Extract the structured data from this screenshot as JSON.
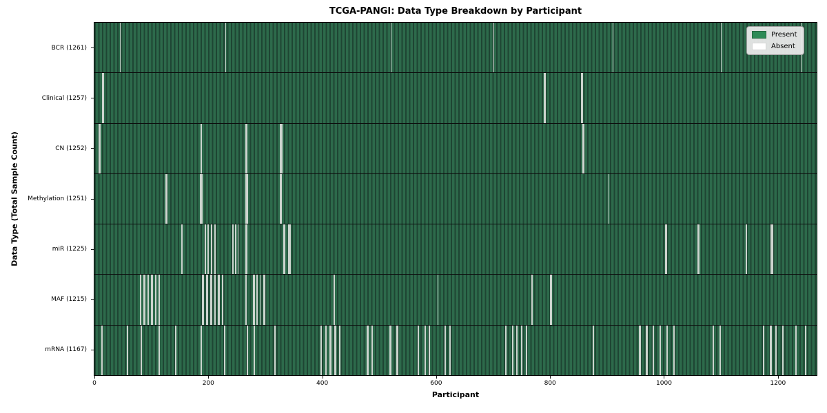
{
  "title": "TCGA-PANGI: Data Type Breakdown by Participant",
  "xlabel": "Participant",
  "ylabel": "Data Type (Total Sample Count)",
  "legend": {
    "present_label": "Present",
    "absent_label": "Absent"
  },
  "colors": {
    "present": "#2e8b57",
    "absent": "#ffffff",
    "bar_stripe_light": "#2d6a4b",
    "bar_stripe_dark": "#1e4533",
    "row_separator": "#0c0c0c",
    "legend_bg": "#e9e9e9",
    "legend_border": "#9e9e9e"
  },
  "chart_data": {
    "type": "heatmap",
    "title": "TCGA-PANGI: Data Type Breakdown by Participant",
    "xlabel": "Participant",
    "ylabel": "Data Type (Total Sample Count)",
    "legend": [
      "Present",
      "Absent"
    ],
    "legend_position": "upper right",
    "grid": false,
    "xlim": [
      0,
      1268
    ],
    "x_ticks": [
      0,
      200,
      400,
      600,
      800,
      1000,
      1200
    ],
    "n_participants": 1268,
    "value_encoding": {
      "present": "seagreen bar",
      "absent": "white gap"
    },
    "rows": [
      {
        "label": "BCR (1261)",
        "data_type": "BCR",
        "total": 1261,
        "absent": [
          45,
          230,
          520,
          700,
          910,
          1100,
          1240
        ]
      },
      {
        "label": "Clinical (1257)",
        "data_type": "Clinical",
        "total": 1257,
        "absent": [
          13,
          14,
          15,
          16,
          789,
          790,
          791,
          854,
          855,
          856,
          857
        ]
      },
      {
        "label": "CN (1252)",
        "data_type": "CN",
        "total": 1252,
        "absent": [
          7,
          8,
          9,
          186,
          187,
          188,
          265,
          266,
          267,
          326,
          327,
          328,
          329,
          857,
          858,
          859
        ]
      },
      {
        "label": "Methylation (1251)",
        "data_type": "Methylation",
        "total": 1251,
        "absent": [
          125,
          126,
          127,
          185,
          186,
          187,
          188,
          189,
          265,
          266,
          267,
          268,
          326,
          327,
          328,
          902,
          903
        ]
      },
      {
        "label": "miR (1225)",
        "data_type": "miR",
        "total": 1225,
        "absent": [
          152,
          153,
          193,
          194,
          195,
          199,
          200,
          204,
          205,
          206,
          210,
          211,
          212,
          242,
          243,
          247,
          248,
          252,
          265,
          266,
          267,
          331,
          332,
          333,
          334,
          340,
          341,
          342,
          343,
          1002,
          1003,
          1004,
          1059,
          1060,
          1061,
          1143,
          1144,
          1145,
          1187,
          1188,
          1189,
          1190,
          1191
        ]
      },
      {
        "label": "MAF (1215)",
        "data_type": "MAF",
        "total": 1215,
        "absent": [
          80,
          81,
          86,
          87,
          88,
          93,
          94,
          99,
          100,
          101,
          106,
          107,
          113,
          114,
          189,
          190,
          191,
          196,
          197,
          198,
          203,
          204,
          205,
          206,
          211,
          212,
          217,
          218,
          219,
          224,
          225,
          265,
          266,
          278,
          279,
          280,
          284,
          285,
          286,
          291,
          292,
          297,
          298,
          299,
          420,
          421,
          602,
          603,
          767,
          768,
          800,
          801,
          802
        ]
      },
      {
        "label": "mRNA (1167)",
        "data_type": "mRNA",
        "total": 1167,
        "absent": [
          12,
          13,
          57,
          58,
          81,
          82,
          113,
          114,
          142,
          143,
          186,
          187,
          227,
          228,
          267,
          268,
          279,
          280,
          316,
          317,
          397,
          398,
          405,
          406,
          407,
          413,
          414,
          415,
          421,
          422,
          423,
          429,
          430,
          431,
          478,
          479,
          480,
          486,
          487,
          518,
          519,
          520,
          530,
          531,
          532,
          567,
          568,
          569,
          579,
          580,
          581,
          587,
          588,
          615,
          616,
          623,
          624,
          721,
          722,
          733,
          734,
          741,
          742,
          749,
          750,
          757,
          758,
          875,
          876,
          956,
          957,
          958,
          968,
          969,
          970,
          980,
          981,
          992,
          993,
          1004,
          1005,
          1016,
          1017,
          1085,
          1086,
          1097,
          1098,
          1174,
          1175,
          1186,
          1187,
          1188,
          1195,
          1196,
          1207,
          1208,
          1209,
          1231,
          1232,
          1247,
          1248
        ]
      }
    ]
  }
}
